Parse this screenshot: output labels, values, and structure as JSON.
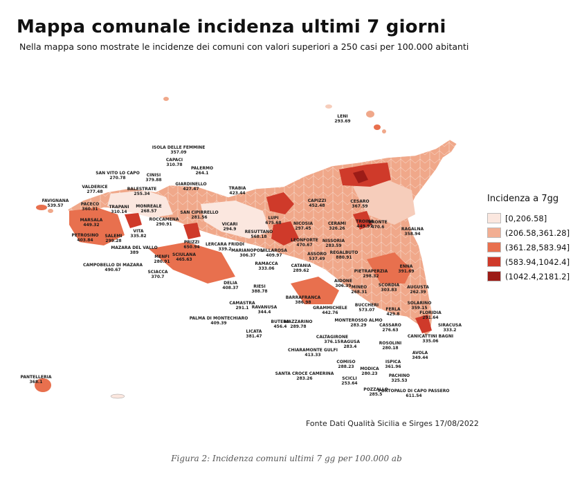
{
  "header": {
    "title": "Mappa comunale incidenza ultimi 7 giorni",
    "subtitle": "Nella mappa sono mostrate le incidenze dei comuni con valori superiori a 250 casi per 100.000 abitanti"
  },
  "legend": {
    "title": "Incidenza a 7gg",
    "items": [
      {
        "label": "[0,206.58]",
        "color": "#fbe7df"
      },
      {
        "label": "(206.58,361.28]",
        "color": "#f2ae92"
      },
      {
        "label": "(361.28,583.94]",
        "color": "#e8704e"
      },
      {
        "label": "(583.94,1042.4]",
        "color": "#cf3a2a"
      },
      {
        "label": "(1042.4,2181.2]",
        "color": "#9c1c17"
      }
    ]
  },
  "labels": [
    {
      "name": "LENI",
      "value": "293.69"
    },
    {
      "name": "ISOLA DELLE FEMMINE",
      "value": "357.09"
    },
    {
      "name": "CAPACI",
      "value": "310.78"
    },
    {
      "name": "PALERMO",
      "value": "264.1"
    },
    {
      "name": "SAN VITO LO CAPO",
      "value": "270.78"
    },
    {
      "name": "CINISI",
      "value": "379.88"
    },
    {
      "name": "GIARDINELLO",
      "value": "427.47"
    },
    {
      "name": "VALDERICE",
      "value": "277.48"
    },
    {
      "name": "BALESTRATE",
      "value": "255.34"
    },
    {
      "name": "TRABIA",
      "value": "423.44"
    },
    {
      "name": "FAVIGNANA",
      "value": "539.57"
    },
    {
      "name": "PACECO",
      "value": "360.31"
    },
    {
      "name": "TRAPANI",
      "value": "310.14"
    },
    {
      "name": "MONREALE",
      "value": "268.57"
    },
    {
      "name": "SAN CIPIRRELLO",
      "value": "281.56"
    },
    {
      "name": "ROCCAMENA",
      "value": "290.91"
    },
    {
      "name": "MARSALA",
      "value": "449.32"
    },
    {
      "name": "CAPIZZI",
      "value": "452.48"
    },
    {
      "name": "CESARO",
      "value": "367.59"
    },
    {
      "name": "VITA",
      "value": "335.82"
    },
    {
      "name": "VICARI",
      "value": "294.9"
    },
    {
      "name": "NICOSIA",
      "value": "297.45"
    },
    {
      "name": "CERAMI",
      "value": "326.26"
    },
    {
      "name": "TROINA",
      "value": "449.97"
    },
    {
      "name": "BRONTE",
      "value": "470.6"
    },
    {
      "name": "PETROSINO",
      "value": "403.84"
    },
    {
      "name": "SALEMI",
      "value": "299.28"
    },
    {
      "name": "LUPI",
      "value": "675.68"
    },
    {
      "name": "RESUTTANO",
      "value": "568.18"
    },
    {
      "name": "PRIZZI",
      "value": "650.94"
    },
    {
      "name": "LERCARA FRIDDI",
      "value": "339.2"
    },
    {
      "name": "NISSORIA",
      "value": "283.59"
    },
    {
      "name": "LEONFORTE",
      "value": "470.67"
    },
    {
      "name": "MAZARA DEL VALLO",
      "value": "389"
    },
    {
      "name": "MENFI",
      "value": "280.91"
    },
    {
      "name": "SCIACCA",
      "value": "370.7"
    },
    {
      "name": "CAMPOBELLO DI MAZARA",
      "value": "490.67"
    },
    {
      "name": "SCIULANA",
      "value": "465.63"
    },
    {
      "name": "MARIANOPOLI",
      "value": "306.37"
    },
    {
      "name": "VILLAROSA",
      "value": "409.97"
    },
    {
      "name": "ASSORO",
      "value": "537.49"
    },
    {
      "name": "REGALBUTO",
      "value": "880.91"
    },
    {
      "name": "RAGALNA",
      "value": "358.94"
    },
    {
      "name": "PIETRAPERZIA",
      "value": "298.32"
    },
    {
      "name": "ENNA",
      "value": "391.69"
    },
    {
      "name": "RAMACCA",
      "value": "333.06"
    },
    {
      "name": "CATANIA",
      "value": "289.62"
    },
    {
      "name": "AIDONE",
      "value": "306.39"
    },
    {
      "name": "DELIA",
      "value": "408.37"
    },
    {
      "name": "RIESI",
      "value": "388.78"
    },
    {
      "name": "MINEO",
      "value": "268.31"
    },
    {
      "name": "SCORDIA",
      "value": "303.83"
    },
    {
      "name": "AUGUSTA",
      "value": "262.39"
    },
    {
      "name": "BARRAFRANCA",
      "value": "386.98"
    },
    {
      "name": "BUCCHERI",
      "value": "573.07"
    },
    {
      "name": "FERLA",
      "value": "429.8"
    },
    {
      "name": "SOLARINO",
      "value": "359.15"
    },
    {
      "name": "CAMASTRA",
      "value": "291.1"
    },
    {
      "name": "RAVANUSA",
      "value": "344.4"
    },
    {
      "name": "GRAMMICHELE",
      "value": "442.76"
    },
    {
      "name": "FLORIDIA",
      "value": "291.64"
    },
    {
      "name": "SIRACUSA",
      "value": "333.2"
    },
    {
      "name": "PALMA DI MONTECHIARO",
      "value": "409.39"
    },
    {
      "name": "MAZZARINO",
      "value": "289.78"
    },
    {
      "name": "MONTEROSSO ALMO",
      "value": "283.29"
    },
    {
      "name": "CASSARO",
      "value": "276.63"
    },
    {
      "name": "LICATA",
      "value": "381.47"
    },
    {
      "name": "BUTERA",
      "value": "456.4"
    },
    {
      "name": "CANICATTINI BAGNI",
      "value": "335.06"
    },
    {
      "name": "CALTAGIRONE",
      "value": "376.15"
    },
    {
      "name": "RAGUSA",
      "value": "283.4"
    },
    {
      "name": "ROSOLINI",
      "value": "280.18"
    },
    {
      "name": "CHIARAMONTE GULFI",
      "value": "413.33"
    },
    {
      "name": "AVOLA",
      "value": "349.44"
    },
    {
      "name": "COMISO",
      "value": "288.23"
    },
    {
      "name": "ISPICA",
      "value": "361.96"
    },
    {
      "name": "MODICA",
      "value": "280.23"
    },
    {
      "name": "SANTA CROCE CAMERINA",
      "value": "283.26"
    },
    {
      "name": "PACHINO",
      "value": "325.53"
    },
    {
      "name": "SCICLI",
      "value": "253.64"
    },
    {
      "name": "POZZALLO",
      "value": "285.5"
    },
    {
      "name": "PORTOPALO DI CAPO PASSERO",
      "value": "611.54"
    },
    {
      "name": "PANTELLERIA",
      "value": "368.1"
    }
  ],
  "footer": {
    "source": "Fonte Dati Qualità Sicilia e Sirges 17/08/2022",
    "caption": "Figura 2: Incidenza comuni ultimi 7 gg per 100.000 ab"
  }
}
